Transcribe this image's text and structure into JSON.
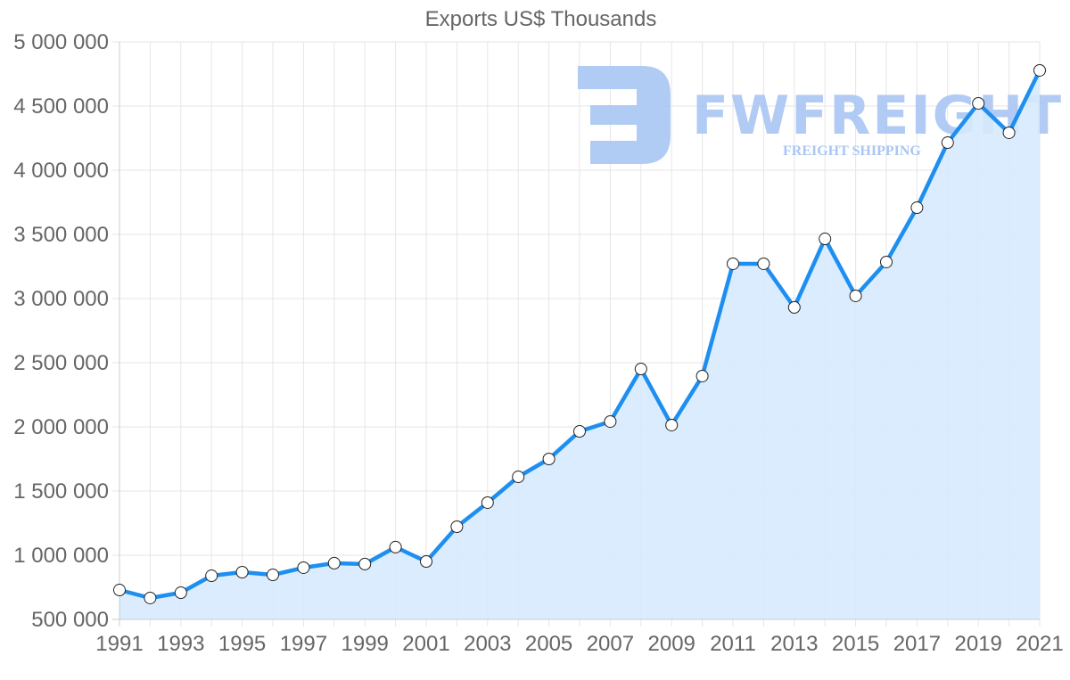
{
  "chart_data": {
    "type": "line",
    "title": "Exports US$ Thousands",
    "xlabel": "",
    "ylabel": "",
    "x": [
      1991,
      1992,
      1993,
      1994,
      1995,
      1996,
      1997,
      1998,
      1999,
      2000,
      2001,
      2002,
      2003,
      2004,
      2005,
      2006,
      2007,
      2008,
      2009,
      2010,
      2011,
      2012,
      2013,
      2014,
      2015,
      2016,
      2017,
      2018,
      2019,
      2020,
      2021
    ],
    "series": [
      {
        "name": "Exports US$ Thousands",
        "values": [
          729000,
          667000,
          708000,
          840000,
          868000,
          847000,
          903000,
          938000,
          931000,
          1063000,
          951000,
          1222000,
          1410000,
          1611000,
          1750000,
          1965000,
          2042000,
          2451000,
          2014000,
          2396000,
          3271000,
          3271000,
          2931000,
          3465000,
          3021000,
          3285000,
          3708000,
          4215000,
          4521000,
          4292000,
          4778000
        ]
      }
    ],
    "ylim": [
      500000,
      5000000
    ],
    "yticks": [
      500000,
      1000000,
      1500000,
      2000000,
      2500000,
      3000000,
      3500000,
      4000000,
      4500000,
      5000000
    ],
    "ytick_labels": [
      "500 000",
      "1 000 000",
      "1 500 000",
      "2 000 000",
      "2 500 000",
      "3 000 000",
      "3 500 000",
      "4 000 000",
      "4 500 000",
      "5 000 000"
    ],
    "xtick_labels": [
      "1991",
      "1993",
      "1995",
      "1997",
      "1999",
      "2001",
      "2003",
      "2005",
      "2007",
      "2009",
      "2011",
      "2013",
      "2015",
      "2017",
      "2019",
      "2021"
    ],
    "grid": true,
    "legend": "none",
    "fill": true,
    "colors": {
      "line": "#1e8ff0",
      "fill": "#d6eafd",
      "grid": "#e6e6e6",
      "axis": "#cccccc",
      "point_fill": "#ffffff",
      "point_stroke": "#222222",
      "text": "#666666"
    }
  },
  "watermark": {
    "brand": "FWFREIGHT",
    "tagline": "FREIGHT SHIPPING",
    "color": "#a9c6f3"
  }
}
